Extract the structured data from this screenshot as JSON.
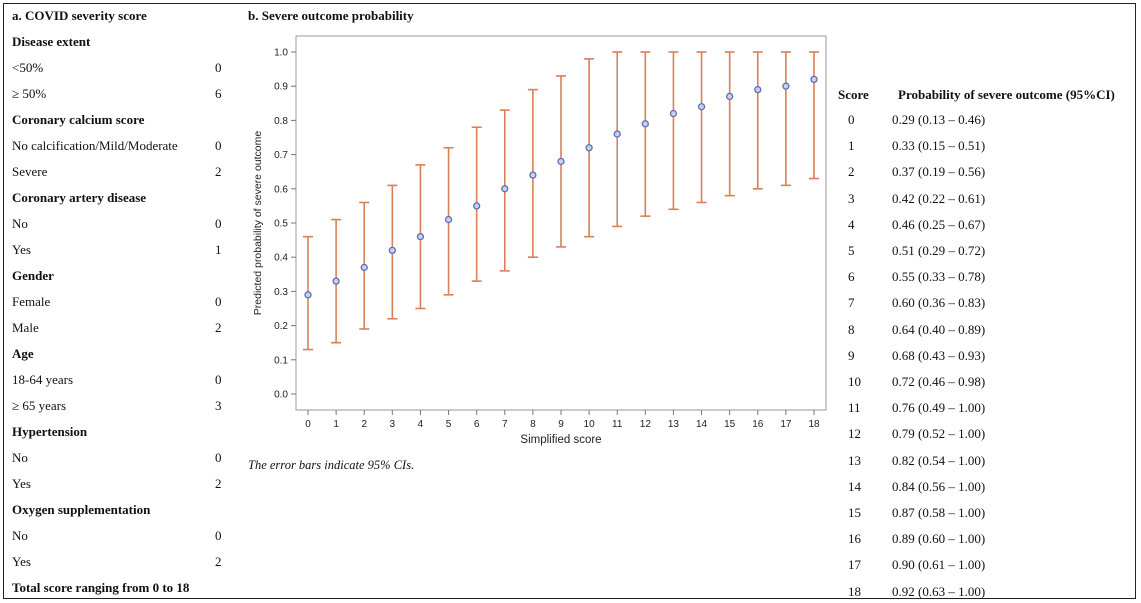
{
  "panel_a": {
    "title": "a. COVID severity score",
    "rows": [
      {
        "label": "Disease extent",
        "points": "",
        "bold": true
      },
      {
        "label": "<50%",
        "points": "0",
        "bold": false
      },
      {
        "label": "≥ 50%",
        "points": "6",
        "bold": false
      },
      {
        "label": "Coronary calcium score",
        "points": "",
        "bold": true
      },
      {
        "label": "No calcification/Mild/Moderate",
        "points": "0",
        "bold": false
      },
      {
        "label": "Severe",
        "points": "2",
        "bold": false
      },
      {
        "label": "Coronary artery disease",
        "points": "",
        "bold": true
      },
      {
        "label": "No",
        "points": "0",
        "bold": false
      },
      {
        "label": "Yes",
        "points": "1",
        "bold": false
      },
      {
        "label": "Gender",
        "points": "",
        "bold": true
      },
      {
        "label": "Female",
        "points": "0",
        "bold": false
      },
      {
        "label": "Male",
        "points": "2",
        "bold": false
      },
      {
        "label": "Age",
        "points": "",
        "bold": true
      },
      {
        "label": "18-64 years",
        "points": "0",
        "bold": false
      },
      {
        "label": "≥ 65 years",
        "points": "3",
        "bold": false
      },
      {
        "label": "Hypertension",
        "points": "",
        "bold": true
      },
      {
        "label": "No",
        "points": "0",
        "bold": false
      },
      {
        "label": "Yes",
        "points": "2",
        "bold": false
      },
      {
        "label": "Oxygen supplementation",
        "points": "",
        "bold": true
      },
      {
        "label": "No",
        "points": "0",
        "bold": false
      },
      {
        "label": "Yes",
        "points": "2",
        "bold": false
      },
      {
        "label": "Total score ranging from 0 to 18",
        "points": "",
        "bold": true
      }
    ]
  },
  "panel_b": {
    "title": "b. Severe outcome probability",
    "note": "The error bars indicate 95% CIs."
  },
  "table": {
    "header_score": "Score",
    "header_prob": "Probability of severe outcome (95%CI)",
    "rows": [
      {
        "score": "0",
        "prob": "0.29 (0.13 – 0.46)"
      },
      {
        "score": "1",
        "prob": "0.33 (0.15 – 0.51)"
      },
      {
        "score": "2",
        "prob": "0.37 (0.19 – 0.56)"
      },
      {
        "score": "3",
        "prob": "0.42 (0.22 – 0.61)"
      },
      {
        "score": "4",
        "prob": "0.46 (0.25 – 0.67)"
      },
      {
        "score": "5",
        "prob": "0.51 (0.29 – 0.72)"
      },
      {
        "score": "6",
        "prob": "0.55 (0.33 – 0.78)"
      },
      {
        "score": "7",
        "prob": "0.60 (0.36 – 0.83)"
      },
      {
        "score": "8",
        "prob": "0.64 (0.40 – 0.89)"
      },
      {
        "score": "9",
        "prob": "0.68 (0.43 – 0.93)"
      },
      {
        "score": "10",
        "prob": "0.72 (0.46 – 0.98)"
      },
      {
        "score": "11",
        "prob": "0.76 (0.49 – 1.00)"
      },
      {
        "score": "12",
        "prob": "0.79 (0.52 – 1.00)"
      },
      {
        "score": "13",
        "prob": "0.82 (0.54 – 1.00)"
      },
      {
        "score": "14",
        "prob": "0.84 (0.56 – 1.00)"
      },
      {
        "score": "15",
        "prob": "0.87 (0.58 – 1.00)"
      },
      {
        "score": "16",
        "prob": "0.89 (0.60 – 1.00)"
      },
      {
        "score": "17",
        "prob": "0.90 (0.61 – 1.00)"
      },
      {
        "score": "18",
        "prob": "0.92 (0.63 – 1.00)"
      }
    ]
  },
  "chart_data": {
    "type": "scatter",
    "title": "",
    "xlabel": "Simplified score",
    "ylabel": "Predicted probability of severe outcome",
    "xlim": [
      0,
      18
    ],
    "ylim": [
      0.0,
      1.0
    ],
    "x_ticks": [
      "0",
      "1",
      "2",
      "3",
      "4",
      "5",
      "6",
      "7",
      "8",
      "9",
      "10",
      "11",
      "12",
      "13",
      "14",
      "15",
      "16",
      "17",
      "18"
    ],
    "y_ticks": [
      "0.0",
      "0.1",
      "0.2",
      "0.3",
      "0.4",
      "0.5",
      "0.6",
      "0.7",
      "0.8",
      "0.9",
      "1.0"
    ],
    "x": [
      0,
      1,
      2,
      3,
      4,
      5,
      6,
      7,
      8,
      9,
      10,
      11,
      12,
      13,
      14,
      15,
      16,
      17,
      18
    ],
    "y": [
      0.29,
      0.33,
      0.37,
      0.42,
      0.46,
      0.51,
      0.55,
      0.6,
      0.64,
      0.68,
      0.72,
      0.76,
      0.79,
      0.82,
      0.84,
      0.87,
      0.89,
      0.9,
      0.92
    ],
    "lower": [
      0.13,
      0.15,
      0.19,
      0.22,
      0.25,
      0.29,
      0.33,
      0.36,
      0.4,
      0.43,
      0.46,
      0.49,
      0.52,
      0.54,
      0.56,
      0.58,
      0.6,
      0.61,
      0.63
    ],
    "upper": [
      0.46,
      0.51,
      0.56,
      0.61,
      0.67,
      0.72,
      0.78,
      0.83,
      0.89,
      0.93,
      0.98,
      1.0,
      1.0,
      1.0,
      1.0,
      1.0,
      1.0,
      1.0,
      1.0
    ],
    "grid": false,
    "marker_color": "#5b6fb5",
    "errorbar_color": "#d9805a"
  }
}
